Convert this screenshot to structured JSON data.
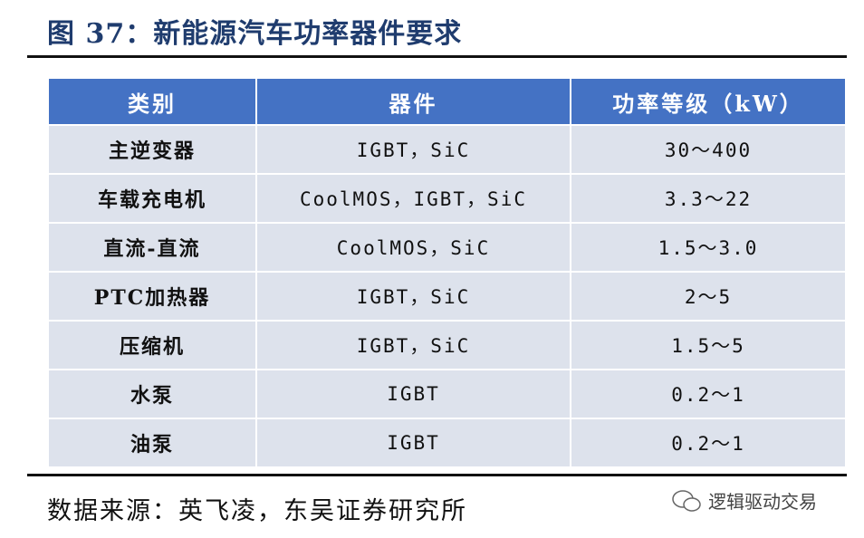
{
  "header": {
    "title": "图 37：新能源汽车功率器件要求"
  },
  "table": {
    "columns": [
      "类别",
      "器件",
      "功率等级（kW）"
    ],
    "rows": [
      [
        "主逆变器",
        "IGBT，SiC",
        "30～400"
      ],
      [
        "车载充电机",
        "CoolMOS，IGBT，SiC",
        "3.3～22"
      ],
      [
        "直流-直流",
        "CoolMOS，SiC",
        "1.5～3.0"
      ],
      [
        "PTC加热器",
        "IGBT，SiC",
        "2～5"
      ],
      [
        "压缩机",
        "IGBT，SiC",
        "1.5～5"
      ],
      [
        "水泵",
        "IGBT",
        "0.2～1"
      ],
      [
        "油泵",
        "IGBT",
        "0.2～1"
      ]
    ]
  },
  "footer": {
    "source": "数据来源：英飞凌，东吴证券研究所",
    "watermark": "逻辑驱动交易"
  }
}
